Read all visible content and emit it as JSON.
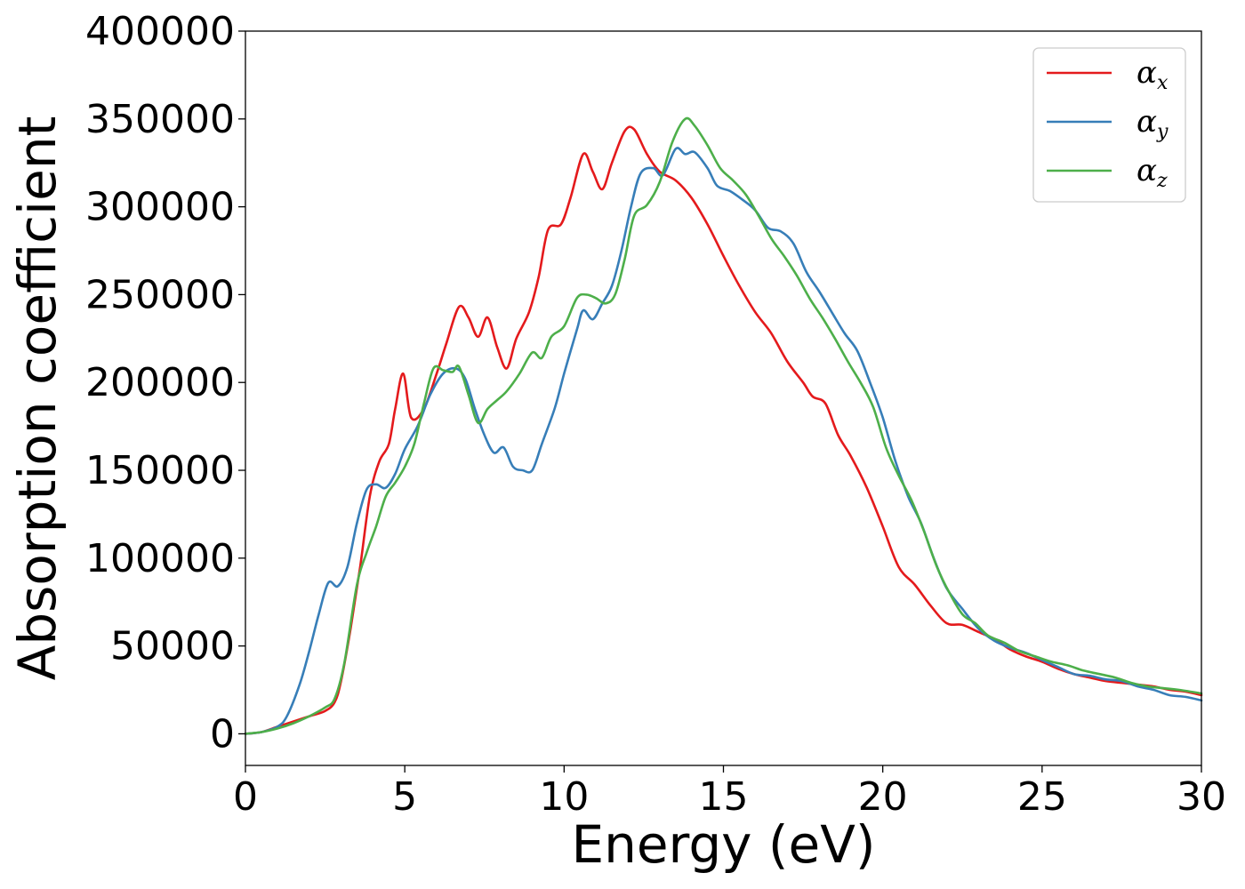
{
  "chart_data": {
    "type": "line",
    "title": "",
    "xlabel": "Energy (eV)",
    "ylabel": "Absorption coefficient",
    "xlim": [
      0,
      30
    ],
    "ylim": [
      -18000,
      400000
    ],
    "xticks": [
      0,
      5,
      10,
      15,
      20,
      25,
      30
    ],
    "yticks": [
      0,
      50000,
      100000,
      150000,
      200000,
      250000,
      300000,
      350000,
      400000
    ],
    "grid": false,
    "legend_position": "top-right",
    "series": [
      {
        "name": "α_x",
        "symbol": "α",
        "subscript": "x",
        "color": "#e41a1c",
        "points": [
          [
            0,
            0
          ],
          [
            0.5,
            1000
          ],
          [
            1,
            4000
          ],
          [
            1.5,
            7000
          ],
          [
            2,
            10000
          ],
          [
            2.5,
            13000
          ],
          [
            2.8,
            18000
          ],
          [
            3,
            30000
          ],
          [
            3.3,
            60000
          ],
          [
            3.6,
            95000
          ],
          [
            3.9,
            135000
          ],
          [
            4.2,
            155000
          ],
          [
            4.5,
            165000
          ],
          [
            4.7,
            185000
          ],
          [
            4.95,
            205000
          ],
          [
            5.2,
            180000
          ],
          [
            5.6,
            185000
          ],
          [
            6,
            205000
          ],
          [
            6.3,
            222000
          ],
          [
            6.7,
            243000
          ],
          [
            7,
            237000
          ],
          [
            7.3,
            226000
          ],
          [
            7.6,
            237000
          ],
          [
            7.9,
            220000
          ],
          [
            8.2,
            208000
          ],
          [
            8.5,
            225000
          ],
          [
            8.9,
            240000
          ],
          [
            9.2,
            260000
          ],
          [
            9.5,
            287000
          ],
          [
            9.9,
            290000
          ],
          [
            10.2,
            305000
          ],
          [
            10.6,
            330000
          ],
          [
            10.9,
            320000
          ],
          [
            11.2,
            310000
          ],
          [
            11.5,
            325000
          ],
          [
            11.9,
            343000
          ],
          [
            12.2,
            344000
          ],
          [
            12.6,
            330000
          ],
          [
            13,
            320000
          ],
          [
            13.5,
            315000
          ],
          [
            14,
            305000
          ],
          [
            14.5,
            290000
          ],
          [
            15,
            272000
          ],
          [
            15.5,
            255000
          ],
          [
            16,
            240000
          ],
          [
            16.5,
            228000
          ],
          [
            17,
            212000
          ],
          [
            17.5,
            200000
          ],
          [
            17.8,
            192000
          ],
          [
            18.2,
            188000
          ],
          [
            18.6,
            170000
          ],
          [
            19,
            158000
          ],
          [
            19.5,
            140000
          ],
          [
            20,
            118000
          ],
          [
            20.5,
            95000
          ],
          [
            21,
            85000
          ],
          [
            21.5,
            73000
          ],
          [
            22,
            63000
          ],
          [
            22.5,
            62000
          ],
          [
            23,
            58000
          ],
          [
            23.5,
            54000
          ],
          [
            24,
            48000
          ],
          [
            24.5,
            44000
          ],
          [
            25,
            41000
          ],
          [
            25.5,
            37000
          ],
          [
            26,
            34000
          ],
          [
            26.5,
            32000
          ],
          [
            27,
            30000
          ],
          [
            27.5,
            29000
          ],
          [
            28,
            28000
          ],
          [
            28.5,
            27000
          ],
          [
            29,
            25000
          ],
          [
            29.5,
            24000
          ],
          [
            30,
            22000
          ]
        ]
      },
      {
        "name": "α_y",
        "symbol": "α",
        "subscript": "y",
        "color": "#377eb8",
        "points": [
          [
            0,
            0
          ],
          [
            0.5,
            1000
          ],
          [
            1,
            4000
          ],
          [
            1.3,
            10000
          ],
          [
            1.7,
            28000
          ],
          [
            2,
            47000
          ],
          [
            2.3,
            68000
          ],
          [
            2.6,
            86000
          ],
          [
            2.9,
            84000
          ],
          [
            3.2,
            95000
          ],
          [
            3.5,
            120000
          ],
          [
            3.8,
            139000
          ],
          [
            4.1,
            142000
          ],
          [
            4.4,
            140000
          ],
          [
            4.7,
            148000
          ],
          [
            5,
            162000
          ],
          [
            5.4,
            175000
          ],
          [
            5.8,
            193000
          ],
          [
            6.2,
            205000
          ],
          [
            6.6,
            208000
          ],
          [
            6.9,
            202000
          ],
          [
            7.2,
            185000
          ],
          [
            7.5,
            170000
          ],
          [
            7.8,
            160000
          ],
          [
            8.1,
            163000
          ],
          [
            8.4,
            152000
          ],
          [
            8.7,
            150000
          ],
          [
            9,
            150000
          ],
          [
            9.3,
            165000
          ],
          [
            9.7,
            185000
          ],
          [
            10,
            205000
          ],
          [
            10.4,
            230000
          ],
          [
            10.6,
            241000
          ],
          [
            10.9,
            236000
          ],
          [
            11.2,
            245000
          ],
          [
            11.5,
            255000
          ],
          [
            11.8,
            275000
          ],
          [
            12.1,
            300000
          ],
          [
            12.4,
            319000
          ],
          [
            12.8,
            322000
          ],
          [
            13.1,
            318000
          ],
          [
            13.5,
            333000
          ],
          [
            13.8,
            330000
          ],
          [
            14.1,
            331000
          ],
          [
            14.5,
            322000
          ],
          [
            14.8,
            312000
          ],
          [
            15.2,
            309000
          ],
          [
            15.6,
            304000
          ],
          [
            16,
            298000
          ],
          [
            16.4,
            288000
          ],
          [
            16.8,
            286000
          ],
          [
            17.2,
            279000
          ],
          [
            17.6,
            263000
          ],
          [
            18,
            252000
          ],
          [
            18.4,
            240000
          ],
          [
            18.8,
            228000
          ],
          [
            19.2,
            218000
          ],
          [
            19.6,
            200000
          ],
          [
            20,
            180000
          ],
          [
            20.4,
            155000
          ],
          [
            20.8,
            135000
          ],
          [
            21.2,
            120000
          ],
          [
            21.6,
            100000
          ],
          [
            22,
            83000
          ],
          [
            22.5,
            71000
          ],
          [
            23,
            60000
          ],
          [
            23.5,
            53000
          ],
          [
            24,
            49000
          ],
          [
            24.5,
            46000
          ],
          [
            25,
            42000
          ],
          [
            25.5,
            38000
          ],
          [
            26,
            34000
          ],
          [
            26.5,
            33000
          ],
          [
            27,
            31000
          ],
          [
            27.5,
            30000
          ],
          [
            28,
            27000
          ],
          [
            28.5,
            25000
          ],
          [
            29,
            22000
          ],
          [
            29.5,
            21000
          ],
          [
            30,
            19000
          ]
        ]
      },
      {
        "name": "α_z",
        "symbol": "α",
        "subscript": "z",
        "color": "#4daf4a",
        "points": [
          [
            0,
            0
          ],
          [
            0.5,
            1000
          ],
          [
            1,
            3000
          ],
          [
            1.5,
            6000
          ],
          [
            2,
            10000
          ],
          [
            2.5,
            15000
          ],
          [
            2.8,
            20000
          ],
          [
            3.1,
            40000
          ],
          [
            3.5,
            85000
          ],
          [
            3.8,
            103000
          ],
          [
            4.1,
            118000
          ],
          [
            4.4,
            135000
          ],
          [
            4.7,
            143000
          ],
          [
            5,
            152000
          ],
          [
            5.3,
            165000
          ],
          [
            5.6,
            188000
          ],
          [
            5.9,
            208000
          ],
          [
            6.2,
            207000
          ],
          [
            6.5,
            206000
          ],
          [
            6.7,
            209000
          ],
          [
            7,
            193000
          ],
          [
            7.3,
            177000
          ],
          [
            7.6,
            185000
          ],
          [
            7.9,
            190000
          ],
          [
            8.2,
            195000
          ],
          [
            8.6,
            205000
          ],
          [
            9,
            217000
          ],
          [
            9.3,
            214000
          ],
          [
            9.6,
            226000
          ],
          [
            10,
            232000
          ],
          [
            10.4,
            248000
          ],
          [
            10.7,
            250000
          ],
          [
            11,
            248000
          ],
          [
            11.3,
            245000
          ],
          [
            11.6,
            250000
          ],
          [
            11.9,
            270000
          ],
          [
            12.2,
            295000
          ],
          [
            12.6,
            301000
          ],
          [
            13,
            314000
          ],
          [
            13.4,
            337000
          ],
          [
            13.8,
            350000
          ],
          [
            14.1,
            346000
          ],
          [
            14.5,
            335000
          ],
          [
            14.9,
            322000
          ],
          [
            15.3,
            315000
          ],
          [
            15.7,
            307000
          ],
          [
            16.1,
            295000
          ],
          [
            16.5,
            282000
          ],
          [
            16.9,
            272000
          ],
          [
            17.3,
            261000
          ],
          [
            17.7,
            248000
          ],
          [
            18.1,
            237000
          ],
          [
            18.5,
            225000
          ],
          [
            18.9,
            212000
          ],
          [
            19.3,
            200000
          ],
          [
            19.7,
            186000
          ],
          [
            20.1,
            163000
          ],
          [
            20.5,
            147000
          ],
          [
            20.9,
            133000
          ],
          [
            21.3,
            115000
          ],
          [
            21.7,
            95000
          ],
          [
            22.1,
            80000
          ],
          [
            22.5,
            68000
          ],
          [
            22.9,
            63000
          ],
          [
            23.3,
            56000
          ],
          [
            23.8,
            52000
          ],
          [
            24.3,
            47000
          ],
          [
            24.8,
            44000
          ],
          [
            25.3,
            41000
          ],
          [
            25.8,
            39000
          ],
          [
            26.3,
            36000
          ],
          [
            26.8,
            34000
          ],
          [
            27.3,
            32000
          ],
          [
            27.8,
            29000
          ],
          [
            28.3,
            27000
          ],
          [
            28.8,
            26000
          ],
          [
            29.3,
            25000
          ],
          [
            30,
            23000
          ]
        ]
      }
    ]
  }
}
